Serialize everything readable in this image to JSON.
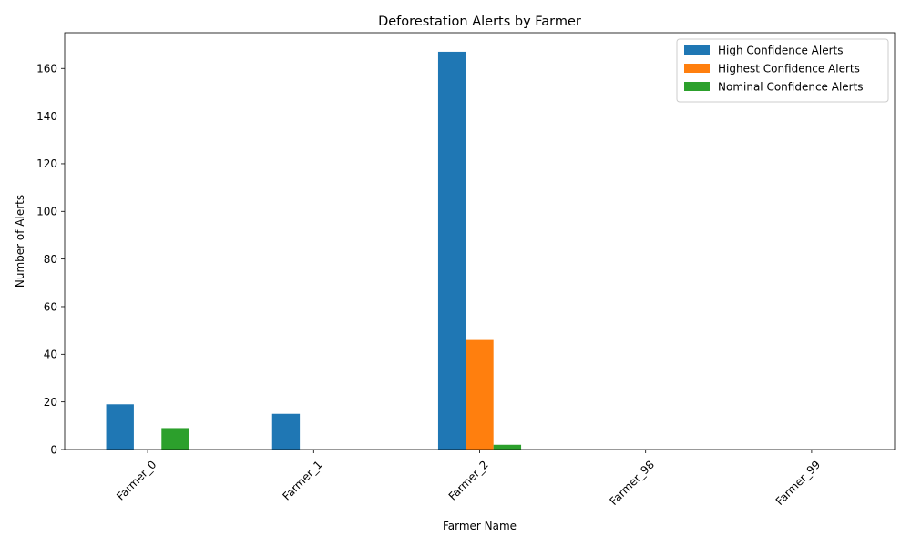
{
  "chart_data": {
    "type": "bar",
    "title": "Deforestation Alerts by Farmer",
    "xlabel": "Farmer Name",
    "ylabel": "Number of Alerts",
    "categories": [
      "Farmer_0",
      "Farmer_1",
      "Farmer_2",
      "Farmer_98",
      "Farmer_99"
    ],
    "series": [
      {
        "name": "High Confidence Alerts",
        "values": [
          19,
          15,
          167,
          0,
          0
        ],
        "color": "#1f77b4"
      },
      {
        "name": "Highest Confidence Alerts",
        "values": [
          0,
          0,
          46,
          0,
          0
        ],
        "color": "#ff7f0e"
      },
      {
        "name": "Nominal Confidence Alerts",
        "values": [
          9,
          0,
          2,
          0,
          0
        ],
        "color": "#2ca02c"
      }
    ],
    "ylim": [
      0,
      175
    ],
    "yticks": [
      0,
      20,
      40,
      60,
      80,
      100,
      120,
      140,
      160
    ],
    "grid": false,
    "legend_position": "top-right",
    "xtick_rotation": 45
  }
}
